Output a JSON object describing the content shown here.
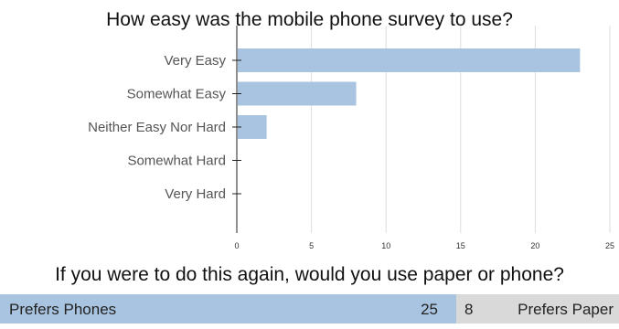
{
  "chart_data": [
    {
      "type": "bar",
      "orientation": "horizontal",
      "title": "How easy was the mobile phone survey to use?",
      "categories": [
        "Very Easy",
        "Somewhat Easy",
        "Neither Easy Nor Hard",
        "Somewhat Hard",
        "Very Hard"
      ],
      "values": [
        23,
        8,
        2,
        0,
        0
      ],
      "xlim": [
        0,
        25
      ],
      "xticks": [
        "0",
        "5",
        "10",
        "15",
        "20",
        "25"
      ],
      "grid": true,
      "bar_color": "#a9c4e0",
      "grid_color": "#dddddd"
    },
    {
      "type": "bar",
      "orientation": "stacked-horizontal",
      "title": "If you were to do this again, would you use paper or phone?",
      "series": [
        {
          "name": "Prefers Phones",
          "value": 25,
          "value_label": "25",
          "color": "#a9c4e0"
        },
        {
          "name": "Prefers Paper",
          "value": 8,
          "value_label": "8",
          "color": "#d9d9d9"
        }
      ]
    }
  ]
}
